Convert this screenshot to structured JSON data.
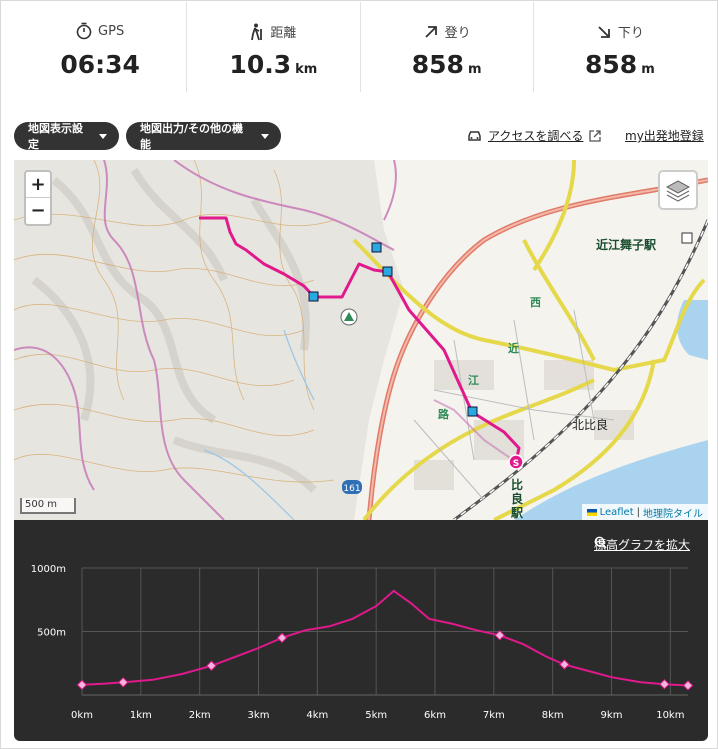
{
  "stats": [
    {
      "label": "GPS",
      "value": "06:34",
      "unit": "",
      "icon": "stopwatch-icon"
    },
    {
      "label": "距離",
      "value": "10.3",
      "unit": "km",
      "icon": "hiker-icon"
    },
    {
      "label": "登り",
      "value": "858",
      "unit": "m",
      "icon": "arrow-up-right-icon"
    },
    {
      "label": "下り",
      "value": "858",
      "unit": "m",
      "icon": "arrow-down-right-icon"
    }
  ],
  "toolbar": {
    "map_settings": "地図表示設定",
    "map_output": "地図出力/その他の機能",
    "access": "アクセスを調べる",
    "register": "my出発地登録"
  },
  "map": {
    "zoom_in": "+",
    "zoom_out": "−",
    "scale": "500 m",
    "attribution_leaflet": "Leaflet",
    "attribution_sep": "|",
    "attribution_gsi": "地理院タイル",
    "labels": {
      "station1": "近江舞子駅",
      "area": "北比良",
      "station2a": "比",
      "station2b": "良",
      "station2c": "駅",
      "road1": "西",
      "road2": "近",
      "road3": "江",
      "road4": "路",
      "route_no": "161",
      "start_marker": "S"
    }
  },
  "elevation": {
    "expand_link": "標高グラフを拡大",
    "y_ticks": [
      "1000m",
      "500m"
    ],
    "x_ticks": [
      "0km",
      "1km",
      "2km",
      "3km",
      "4km",
      "5km",
      "6km",
      "7km",
      "8km",
      "9km",
      "10km"
    ]
  },
  "chart_data": {
    "type": "line",
    "xlabel": "",
    "ylabel": "",
    "ylim": [
      0,
      1000
    ],
    "xlim": [
      0,
      10.3
    ],
    "line_color": "#e0198c",
    "x": [
      0,
      0.4,
      0.7,
      1.2,
      1.7,
      2.2,
      2.6,
      3.0,
      3.4,
      3.8,
      4.2,
      4.6,
      5.0,
      5.3,
      5.6,
      5.9,
      6.3,
      6.7,
      7.1,
      7.5,
      7.9,
      8.2,
      8.6,
      9.0,
      9.5,
      9.9,
      10.3
    ],
    "y": [
      80,
      90,
      100,
      120,
      165,
      230,
      300,
      370,
      450,
      510,
      540,
      600,
      700,
      820,
      720,
      600,
      560,
      510,
      470,
      400,
      300,
      240,
      190,
      140,
      100,
      85,
      75
    ],
    "markers_x": [
      0,
      0.7,
      2.2,
      3.4,
      7.1,
      8.2,
      9.9,
      10.3
    ],
    "markers_y": [
      80,
      100,
      230,
      450,
      470,
      240,
      85,
      75
    ]
  }
}
